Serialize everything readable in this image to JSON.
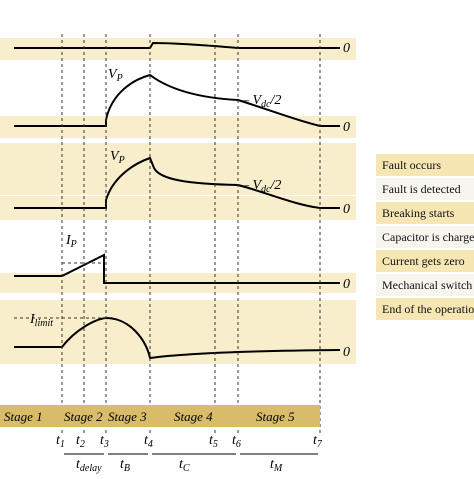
{
  "colors": {
    "band": "#f8eecb",
    "stage_bar": "#d8bc6a",
    "legend_dark": "#f6e6b4",
    "legend_light": "#f7f5ee",
    "trace": "#000000",
    "dashed": "#333333"
  },
  "waveforms": [
    {
      "zero_label": "0",
      "peak_label": "",
      "side_label": ""
    },
    {
      "zero_label": "0",
      "peak_label": "V",
      "peak_sub": "P",
      "side_label_pre": "– V",
      "side_label_sub": "dc",
      "side_label_post": "/2"
    },
    {
      "zero_label": "0",
      "peak_label": "V",
      "peak_sub": "P",
      "side_label_pre": "– V",
      "side_label_sub": "dc",
      "side_label_post": "/2"
    },
    {
      "zero_label": "0",
      "peak_label": "I",
      "peak_sub": "P"
    },
    {
      "zero_label": "0",
      "peak_label": "I",
      "peak_sub": "limit"
    }
  ],
  "stages": [
    "Stage 1",
    "Stage 2",
    "Stage 3",
    "Stage 4",
    "Stage 5"
  ],
  "times": [
    {
      "base": "t",
      "sub": "1"
    },
    {
      "base": "t",
      "sub": "2"
    },
    {
      "base": "t",
      "sub": "3"
    },
    {
      "base": "t",
      "sub": "4"
    },
    {
      "base": "t",
      "sub": "5"
    },
    {
      "base": "t",
      "sub": "6"
    },
    {
      "base": "t",
      "sub": "7"
    }
  ],
  "intervals": [
    {
      "base": "t",
      "sub": "delay"
    },
    {
      "base": "t",
      "sub": "B"
    },
    {
      "base": "t",
      "sub": "C"
    },
    {
      "base": "t",
      "sub": "M"
    }
  ],
  "legend": [
    "Fault occurs",
    "Fault is detected",
    "Breaking starts",
    "Capacitor is charged",
    "Current gets zero",
    "Mechanical switch",
    "End of the operation"
  ]
}
